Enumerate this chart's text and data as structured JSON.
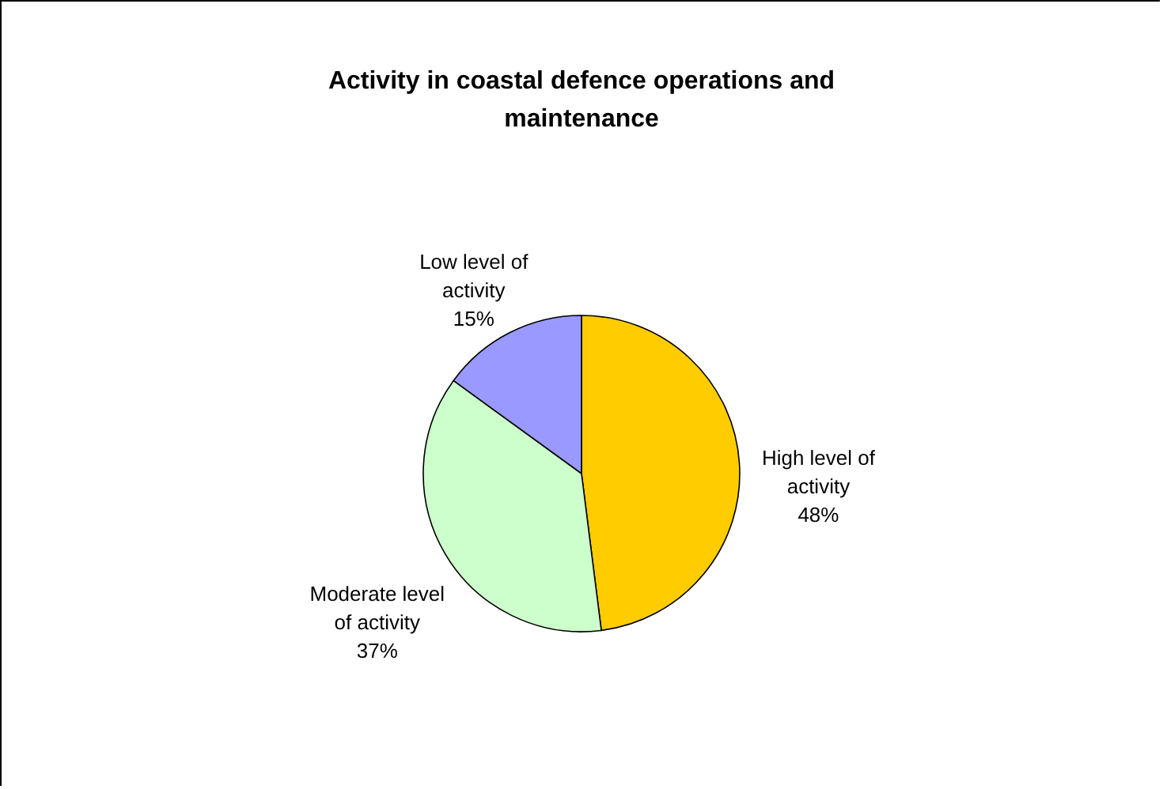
{
  "chart_data": {
    "type": "pie",
    "title": "Activity in coastal defence operations and maintenance",
    "categories": [
      "High level of activity",
      "Moderate level of activity",
      "Low level of activity"
    ],
    "values": [
      48,
      37,
      15
    ],
    "value_labels": [
      "48%",
      "37%",
      "15%"
    ],
    "colors": [
      "#ffcc00",
      "#ccffcc",
      "#9999ff"
    ],
    "legend": false
  }
}
